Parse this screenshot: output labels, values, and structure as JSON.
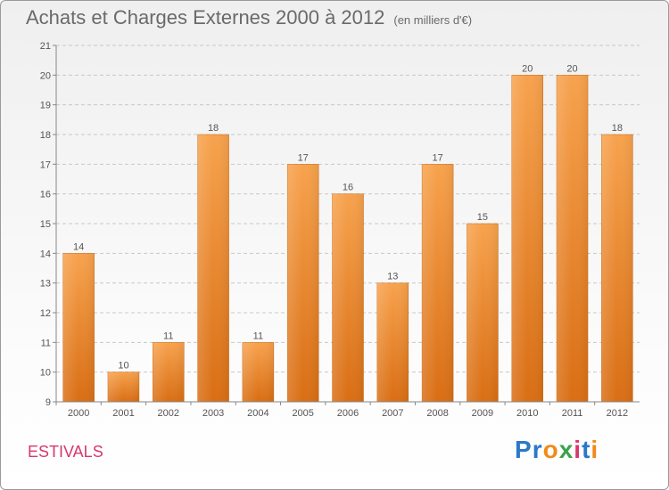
{
  "header": {
    "title": "Achats et Charges Externes 2000 à 2012",
    "unit": "(en milliers d'€)"
  },
  "location": "ESTIVALS",
  "logo": {
    "text": "Proxiti",
    "letters": [
      {
        "ch": "P",
        "color": "#2a78c8"
      },
      {
        "ch": "r",
        "color": "#2a78c8"
      },
      {
        "ch": "o",
        "color": "#f08a1c"
      },
      {
        "ch": "x",
        "color": "#3aa34a"
      },
      {
        "ch": "i",
        "color": "#d7386f"
      },
      {
        "ch": "t",
        "color": "#2a78c8"
      },
      {
        "ch": "i",
        "color": "#f08a1c"
      }
    ]
  },
  "chart_data": {
    "type": "bar",
    "categories": [
      "2000",
      "2001",
      "2002",
      "2003",
      "2004",
      "2005",
      "2006",
      "2007",
      "2008",
      "2009",
      "2010",
      "2011",
      "2012"
    ],
    "values": [
      14,
      10,
      11,
      18,
      11,
      17,
      16,
      13,
      17,
      15,
      20,
      20,
      18
    ],
    "title": "Achats et Charges Externes 2000 à 2012",
    "ylim": [
      9,
      21
    ],
    "yticks": [
      9,
      10,
      11,
      12,
      13,
      14,
      15,
      16,
      17,
      18,
      19,
      20,
      21
    ],
    "grid": "horizontal dashed",
    "bar_color": "#f08a30"
  }
}
